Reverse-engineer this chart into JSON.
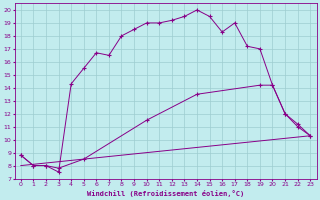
{
  "xlabel": "Windchill (Refroidissement éolien,°C)",
  "bg_color": "#c2ecee",
  "line_color": "#880088",
  "grid_color": "#9ecdd0",
  "xlim": [
    -0.5,
    23.5
  ],
  "ylim": [
    7,
    20.5
  ],
  "xticks": [
    0,
    1,
    2,
    3,
    4,
    5,
    6,
    7,
    8,
    9,
    10,
    11,
    12,
    13,
    14,
    15,
    16,
    17,
    18,
    19,
    20,
    21,
    22,
    23
  ],
  "yticks": [
    7,
    8,
    9,
    10,
    11,
    12,
    13,
    14,
    15,
    16,
    17,
    18,
    19,
    20
  ],
  "line1_x": [
    0,
    1,
    2,
    3,
    4,
    5,
    6,
    7,
    8,
    9,
    10,
    11,
    12,
    13,
    14,
    15,
    16,
    17,
    18,
    19,
    20,
    21,
    22,
    23
  ],
  "line1_y": [
    8.8,
    8.0,
    8.0,
    7.5,
    14.3,
    15.5,
    16.7,
    16.5,
    18.0,
    18.5,
    19.0,
    19.0,
    19.2,
    19.5,
    20.0,
    19.5,
    18.3,
    19.0,
    17.2,
    17.0,
    14.2,
    12.0,
    11.0,
    10.3
  ],
  "line2_x": [
    0,
    1,
    2,
    3,
    5,
    10,
    14,
    19,
    20,
    21,
    22,
    23
  ],
  "line2_y": [
    8.8,
    8.0,
    8.0,
    7.8,
    8.5,
    11.5,
    13.5,
    14.2,
    14.2,
    12.0,
    11.2,
    10.3
  ],
  "line3_x": [
    0,
    23
  ],
  "line3_y": [
    8.0,
    10.3
  ]
}
